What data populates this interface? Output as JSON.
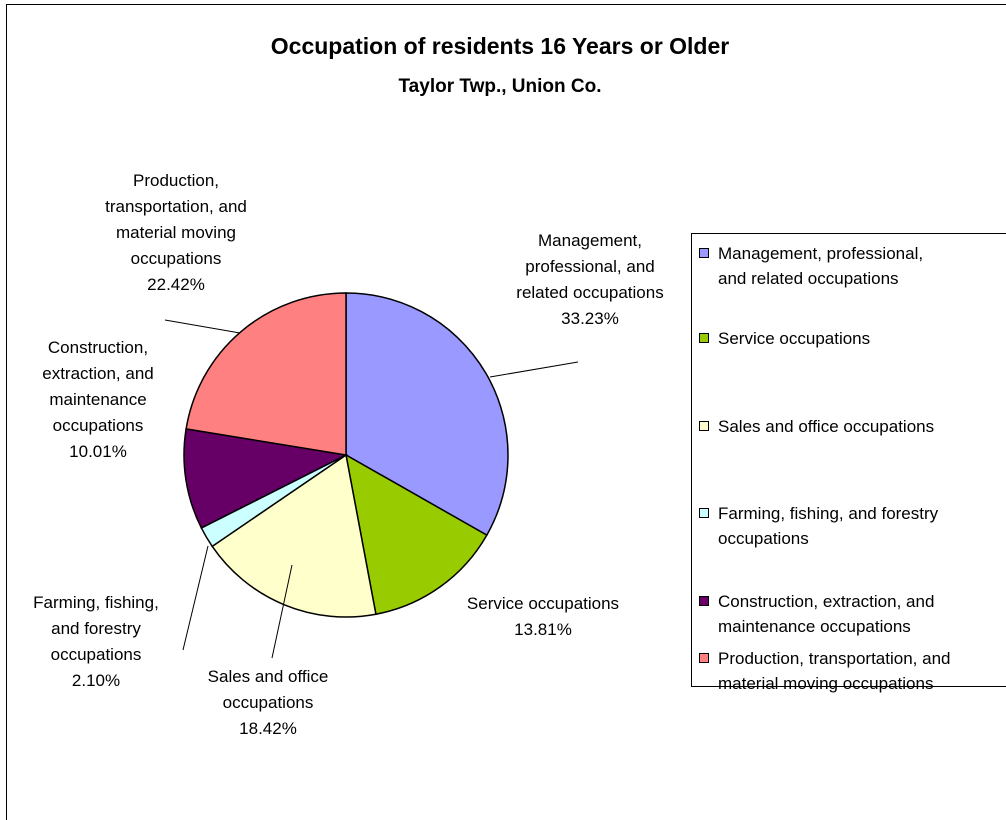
{
  "chart_data": {
    "type": "pie",
    "title": "Occupation of residents 16 Years or Older",
    "subtitle": "Taylor Twp., Union Co.",
    "categories": [
      "Management, professional, and related occupations",
      "Service occupations",
      "Sales and office occupations",
      "Farming, fishing, and forestry occupations",
      "Construction, extraction, and maintenance occupations",
      "Production, transportation, and material moving occupations"
    ],
    "values": [
      33.23,
      13.81,
      18.42,
      2.1,
      10.01,
      22.42
    ],
    "value_labels": [
      "33.23%",
      "13.81%",
      "18.42%",
      "2.10%",
      "10.01%",
      "22.42%"
    ],
    "colors": [
      "#9999ff",
      "#99cc00",
      "#ffffcc",
      "#ccffff",
      "#660066",
      "#ff8080"
    ],
    "legend": "right"
  }
}
